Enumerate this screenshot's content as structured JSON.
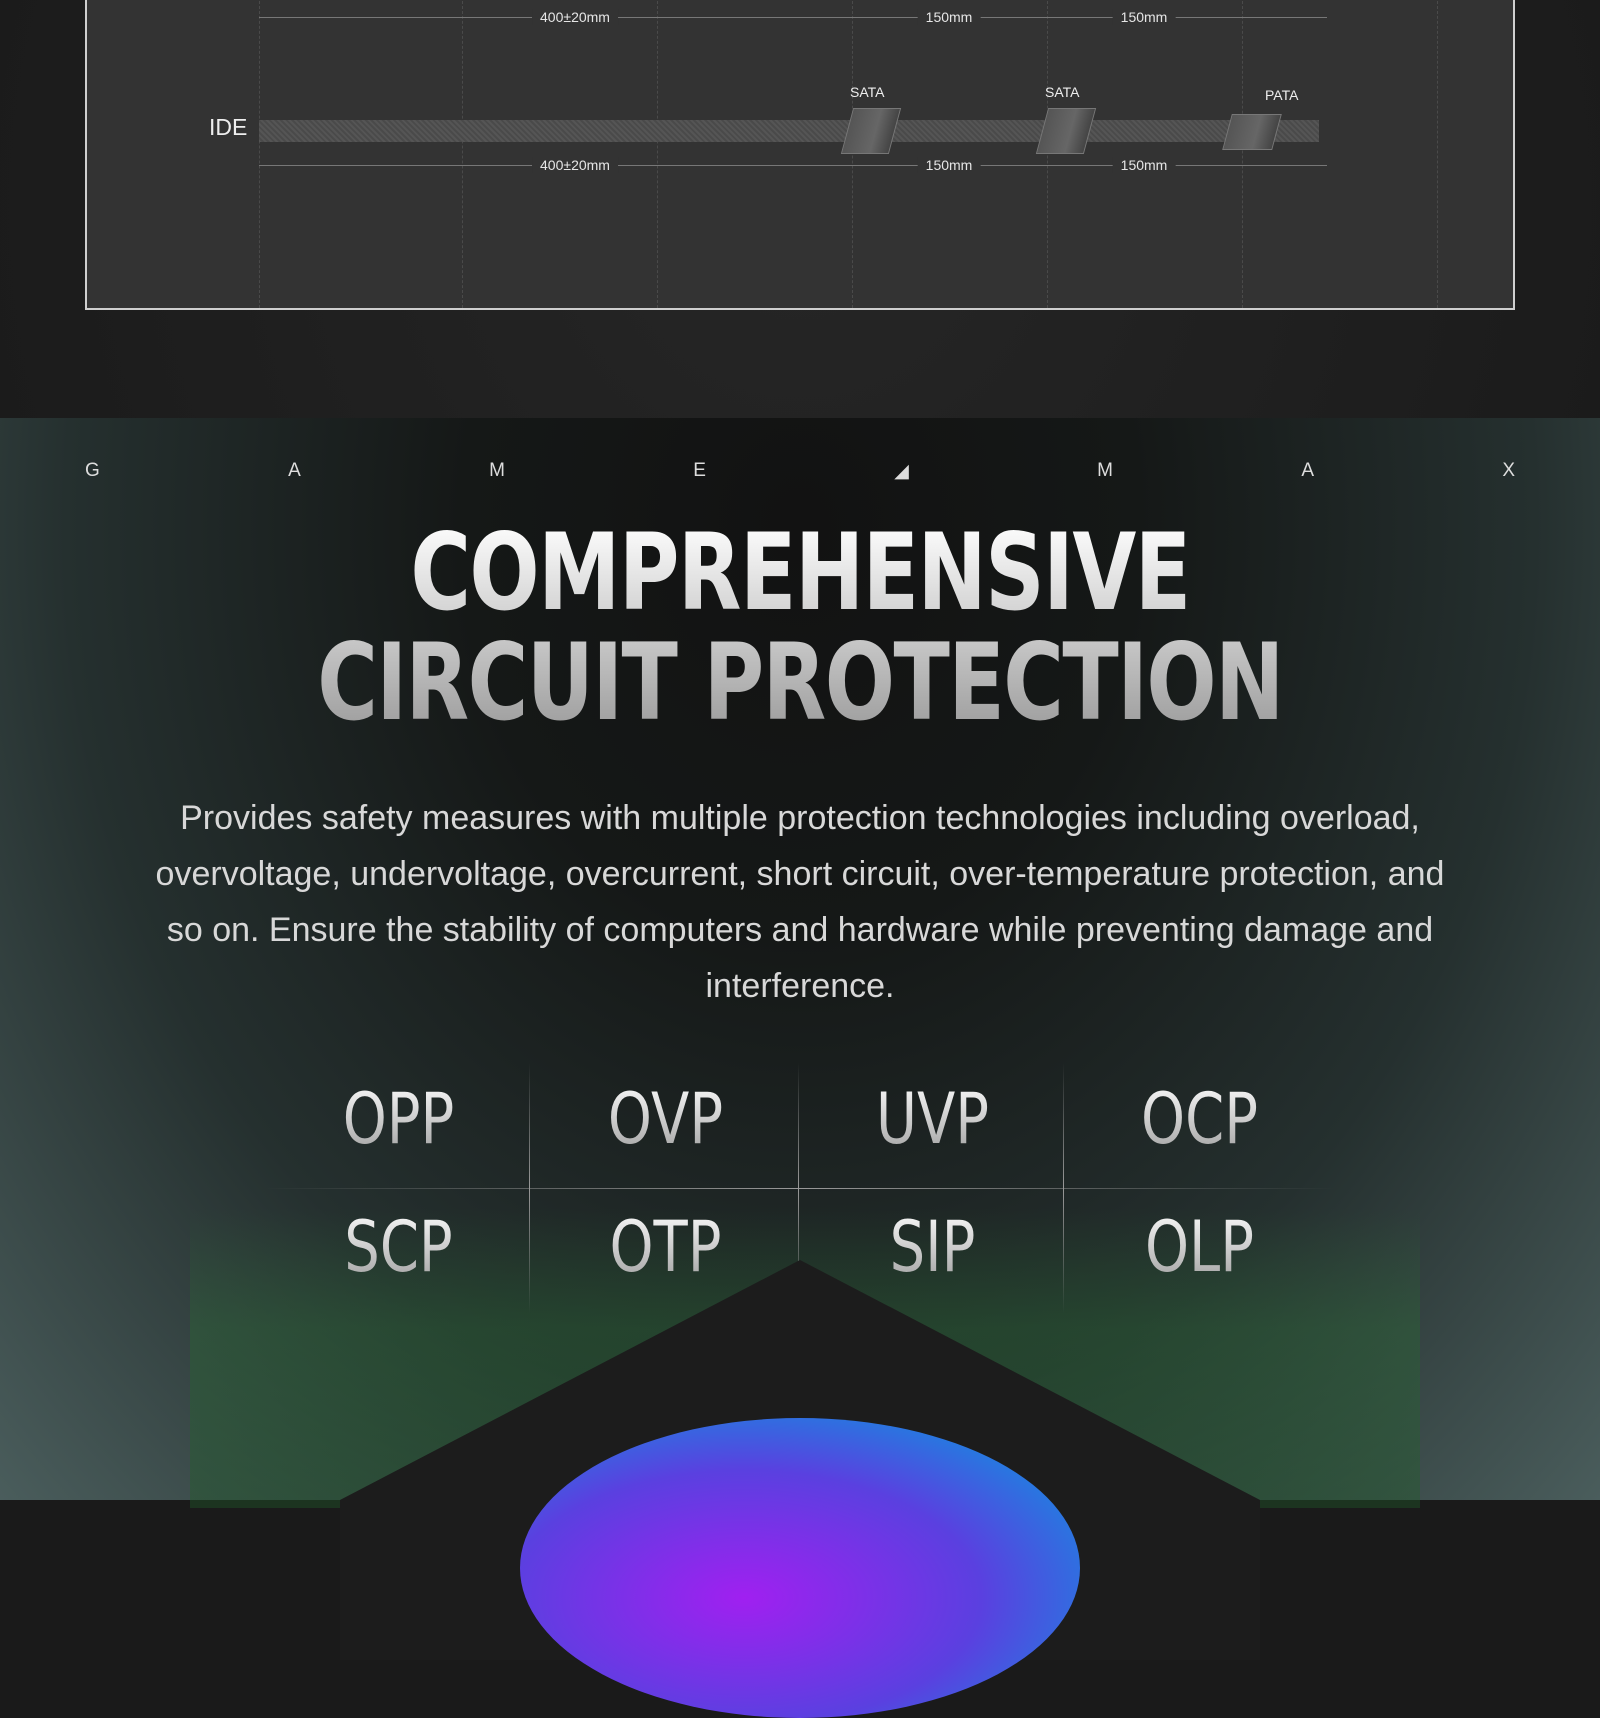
{
  "diagram": {
    "row_label": "IDE",
    "connectors": [
      "SATA",
      "SATA",
      "PATA"
    ],
    "dims": [
      "400±20mm",
      "150mm",
      "150mm"
    ]
  },
  "brand": {
    "letters": [
      "G",
      "A",
      "M",
      "E",
      "◢",
      "M",
      "A",
      "X"
    ]
  },
  "section": {
    "title_line1": "COMPREHENSIVE",
    "title_line2": "CIRCUIT PROTECTION",
    "description": "Provides safety measures with multiple protection technologies including overload, overvoltage, undervoltage, overcurrent, short circuit, over-temperature protection, and so on. Ensure the stability of computers and hardware while preventing damage and interference.",
    "protections": [
      "OPP",
      "OVP",
      "UVP",
      "OCP",
      "SCP",
      "OTP",
      "SIP",
      "OLP"
    ]
  }
}
